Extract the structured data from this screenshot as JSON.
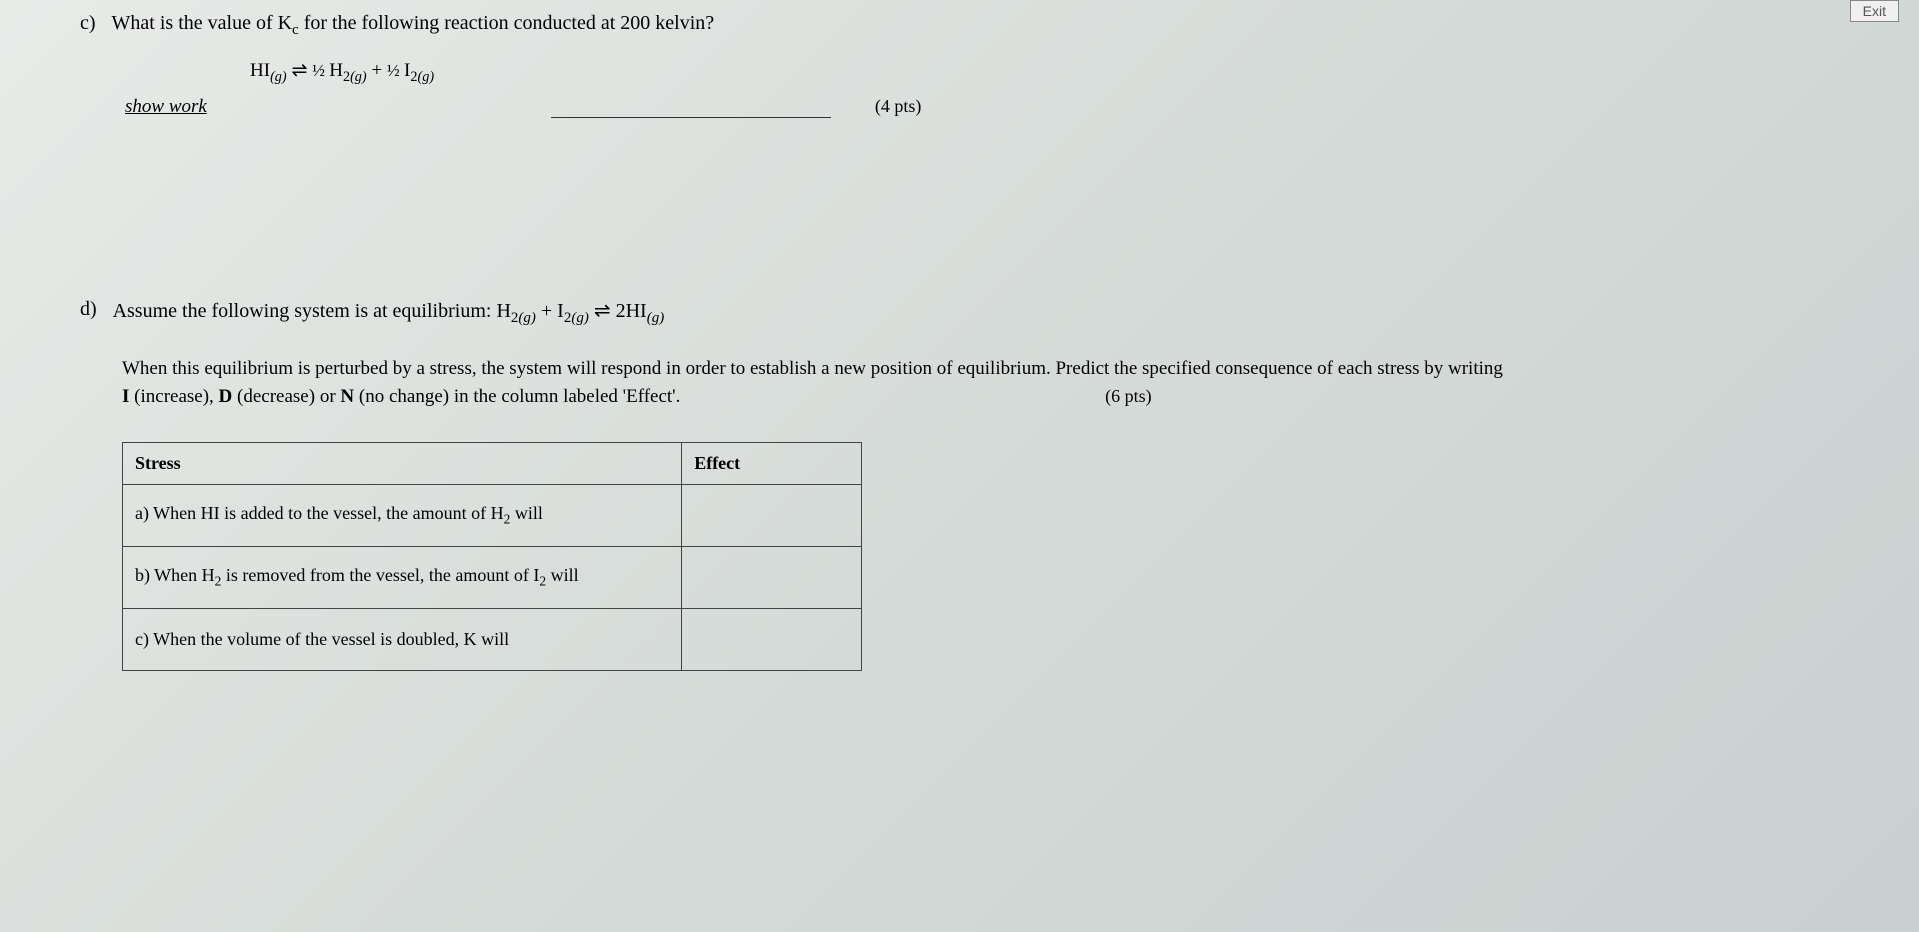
{
  "exit_button": "Exit",
  "question_c": {
    "label": "c)",
    "text": "What is the value of K",
    "text_sub": "c",
    "text_after": " for the following reaction conducted at 200 kelvin?",
    "equation_lhs": "HI",
    "equation_lhs_state": "(g)",
    "equation_arrow": "  ⇌  ",
    "equation_rhs_1_frac": "½ ",
    "equation_rhs_1": "H",
    "equation_rhs_1_sub": "2",
    "equation_rhs_1_state": "(g)",
    "equation_plus": " + ",
    "equation_rhs_2_frac": "½ ",
    "equation_rhs_2": "I",
    "equation_rhs_2_sub": "2",
    "equation_rhs_2_state": "(g)",
    "show_work": "show work",
    "points": "(4 pts)"
  },
  "question_d": {
    "label": "d)",
    "intro": "Assume the following system is at equilibrium:  ",
    "eq_h2": "H",
    "eq_h2_sub": "2",
    "eq_h2_state": "(g)",
    "eq_plus": " + ",
    "eq_i2": "I",
    "eq_i2_sub": "2",
    "eq_i2_state": "(g)",
    "eq_arrow": "  ⇌  ",
    "eq_rhs": "2HI",
    "eq_rhs_state": "(g)",
    "desc_1": "When this equilibrium is perturbed by a stress, the system will respond in order to establish a new position of equilibrium.  Predict the specified consequence of each stress by writing",
    "desc_2a": "I",
    "desc_2b": " (increase), ",
    "desc_2c": "D",
    "desc_2d": " (decrease) or ",
    "desc_2e": "N",
    "desc_2f": " (no change) in the column labeled 'Effect'.",
    "points": "(6 pts)",
    "table": {
      "header_stress": "Stress",
      "header_effect": "Effect",
      "columns": {
        "stress_width": 560,
        "effect_width": 180
      },
      "rows": [
        {
          "label": "a)",
          "pre": "  When HI is added to the vessel, the amount of H",
          "sub": "2",
          "post": " will",
          "effect": ""
        },
        {
          "label": "b)",
          "pre": "  When H",
          "sub": "2",
          "mid": " is removed from the vessel, the amount of I",
          "sub2": "2",
          "post": " will",
          "effect": ""
        },
        {
          "label": "c)",
          "pre": "  When the volume of the vessel is doubled, K will",
          "effect": ""
        }
      ]
    }
  },
  "colors": {
    "background_start": "#e8ebe8",
    "background_end": "#c8d0d0",
    "text": "#1a1a1a",
    "border": "#444444",
    "exit_border": "#888888",
    "exit_bg": "#f0f0f0"
  },
  "typography": {
    "body_font": "Times New Roman",
    "question_fontsize": 20,
    "equation_fontsize": 19,
    "table_fontsize": 18
  }
}
